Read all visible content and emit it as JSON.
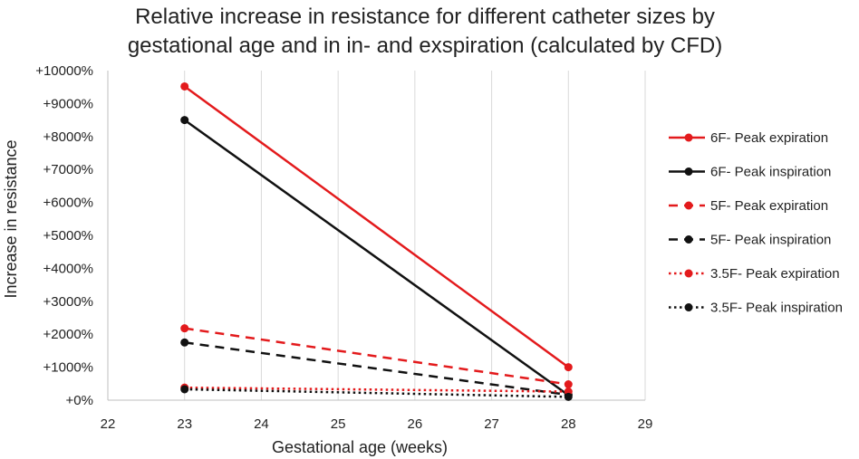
{
  "chart_data": {
    "type": "line",
    "title": [
      "Relative increase in resistance for different catheter sizes by",
      "gestational age and in in- and exspiration (calculated by CFD)"
    ],
    "xlabel": "Gestational age (weeks)",
    "ylabel": "Increase in resistance",
    "xlim": [
      22,
      29
    ],
    "ylim": [
      0,
      10000
    ],
    "x_ticks": [
      22,
      23,
      24,
      25,
      26,
      27,
      28,
      29
    ],
    "x_tick_labels": [
      "22",
      "23",
      "24",
      "25",
      "26",
      "27",
      "28",
      "29"
    ],
    "y_ticks": [
      0,
      1000,
      2000,
      3000,
      4000,
      5000,
      6000,
      7000,
      8000,
      9000,
      10000
    ],
    "y_tick_labels": [
      "+0%",
      "+1000%",
      "+2000%",
      "+3000%",
      "+4000%",
      "+5000%",
      "+6000%",
      "+7000%",
      "+8000%",
      "+9000%",
      "+10000%"
    ],
    "grid": "vertical",
    "legend_position": "right",
    "series": [
      {
        "name": "6F- Peak expiration",
        "color": "#e31a1c",
        "style": "solid",
        "x": [
          23,
          28
        ],
        "values": [
          9520,
          1000
        ]
      },
      {
        "name": "6F- Peak inspiration",
        "color": "#111111",
        "style": "solid",
        "x": [
          23,
          28
        ],
        "values": [
          8500,
          150
        ]
      },
      {
        "name": "5F- Peak expiration",
        "color": "#e31a1c",
        "style": "dashed",
        "x": [
          23,
          28
        ],
        "values": [
          2180,
          480
        ]
      },
      {
        "name": "5F- Peak inspiration",
        "color": "#111111",
        "style": "dashed",
        "x": [
          23,
          28
        ],
        "values": [
          1750,
          160
        ]
      },
      {
        "name": "3.5F- Peak expiration",
        "color": "#e31a1c",
        "style": "dotted",
        "x": [
          23,
          28
        ],
        "values": [
          380,
          260
        ]
      },
      {
        "name": "3.5F- Peak inspiration",
        "color": "#111111",
        "style": "dotted",
        "x": [
          23,
          28
        ],
        "values": [
          330,
          100
        ]
      }
    ]
  }
}
